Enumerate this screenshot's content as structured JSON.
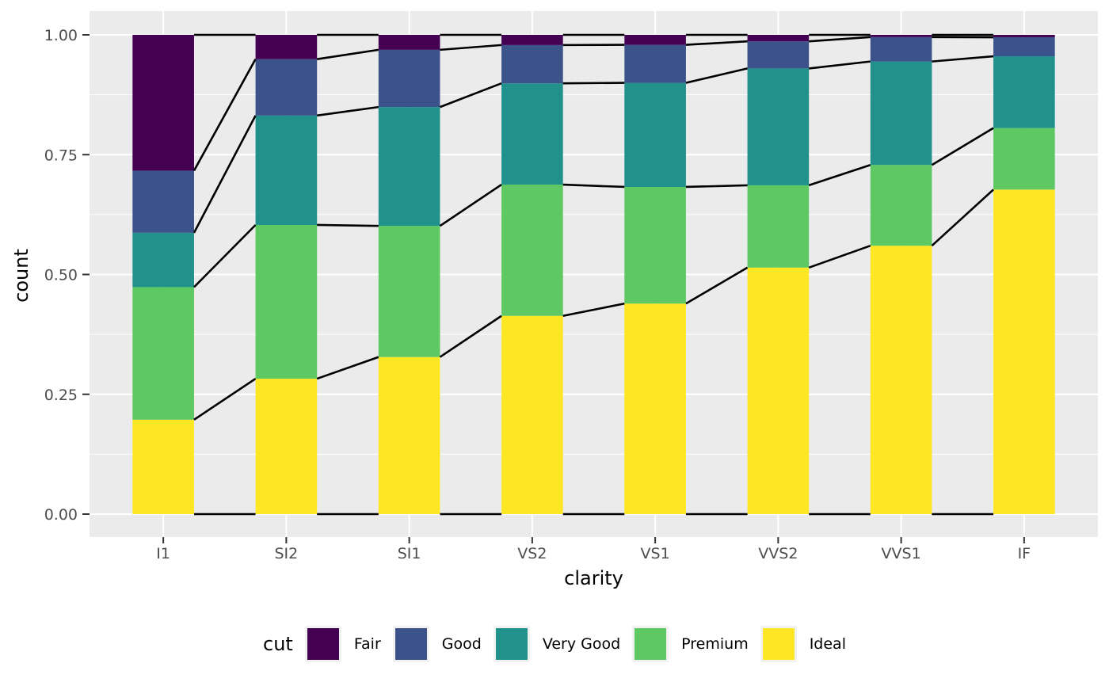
{
  "chart_data": {
    "type": "bar",
    "subtype": "stacked-filled-proportion-with-boundary-lines",
    "title": "",
    "xlabel": "clarity",
    "ylabel": "count",
    "categories": [
      "I1",
      "SI2",
      "SI1",
      "VS2",
      "VS1",
      "VVS2",
      "VVS1",
      "IF"
    ],
    "stack_order_bottom_to_top": [
      "Ideal",
      "Premium",
      "Very Good",
      "Good",
      "Fair"
    ],
    "series": [
      {
        "name": "Fair",
        "color": "#440154",
        "values": [
          0.2834,
          0.0507,
          0.0312,
          0.0213,
          0.0208,
          0.0136,
          0.0047,
          0.005
        ]
      },
      {
        "name": "Good",
        "color": "#3B528B",
        "values": [
          0.1296,
          0.1176,
          0.1194,
          0.0798,
          0.0793,
          0.0565,
          0.0509,
          0.0397
        ]
      },
      {
        "name": "Very Good",
        "color": "#21918C",
        "values": [
          0.1134,
          0.2284,
          0.248,
          0.2114,
          0.2172,
          0.2438,
          0.2159,
          0.1497
        ]
      },
      {
        "name": "Premium",
        "color": "#5EC962",
        "values": [
          0.2767,
          0.3208,
          0.2736,
          0.2739,
          0.2434,
          0.1717,
          0.1685,
          0.1285
        ]
      },
      {
        "name": "Ideal",
        "color": "#FDE725",
        "values": [
          0.197,
          0.2826,
          0.3277,
          0.4137,
          0.4392,
          0.5144,
          0.5601,
          0.6771
        ]
      }
    ],
    "y_tick_labels": [
      "0.00",
      "0.25",
      "0.50",
      "0.75",
      "1.00"
    ],
    "y_tick_values": [
      0,
      0.25,
      0.5,
      0.75,
      1
    ],
    "y_minor_values": [
      0.125,
      0.375,
      0.625,
      0.875
    ],
    "ylim": [
      0,
      1
    ],
    "grid": "on",
    "legend": {
      "title": "cut",
      "position": "bottom"
    },
    "style": {
      "panel_bg": "#EBEBEB",
      "grid_color": "#FFFFFF",
      "tick_mark_color": "#333333",
      "tick_label_color": "#4D4D4D",
      "axis_title_color": "#000000",
      "boundary_line_color": "#000000",
      "legend_key_bg": "#F2F2F2",
      "bar_relative_width": 0.5
    }
  }
}
